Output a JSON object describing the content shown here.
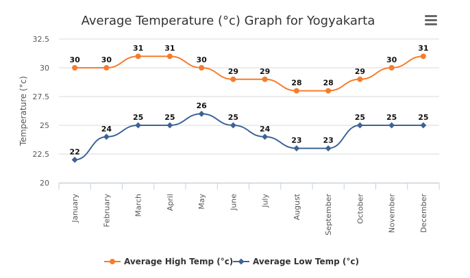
{
  "chart_data": {
    "type": "line",
    "title": "Average Temperature (°c) Graph for Yogyakarta",
    "ylabel": "Temperature (°c)",
    "xlabel": "",
    "categories": [
      "January",
      "February",
      "March",
      "April",
      "May",
      "June",
      "July",
      "August",
      "September",
      "October",
      "November",
      "December"
    ],
    "ylim": [
      20,
      32.5
    ],
    "yticks": [
      20,
      22.5,
      25,
      27.5,
      30,
      32.5
    ],
    "ytick_labels": [
      "20",
      "22.5",
      "25",
      "27.5",
      "30",
      "32.5"
    ],
    "grid": true,
    "legend": "bottom-center",
    "series": [
      {
        "name": "Average High Temp (°c)",
        "color": "#f57c2a",
        "marker": "circle",
        "values": [
          30,
          30,
          31,
          31,
          30,
          29,
          29,
          28,
          28,
          29,
          30,
          31
        ]
      },
      {
        "name": "Average Low Temp (°c)",
        "color": "#3d6396",
        "marker": "diamond",
        "values": [
          22,
          24,
          25,
          25,
          26,
          25,
          24,
          23,
          23,
          25,
          25,
          25
        ]
      }
    ]
  },
  "menu": {
    "icon": "hamburger-menu-icon"
  }
}
